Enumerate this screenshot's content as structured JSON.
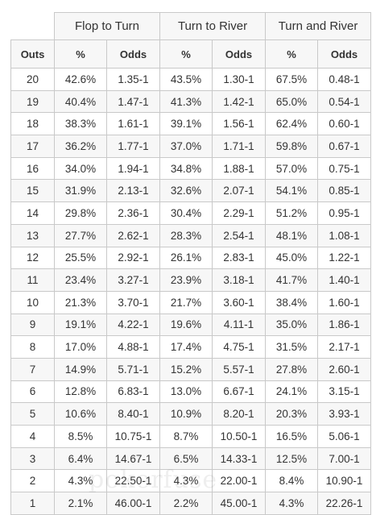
{
  "table": {
    "groups": [
      "Flop to Turn",
      "Turn to River",
      "Turn and River"
    ],
    "subheaders": [
      "Outs",
      "%",
      "Odds",
      "%",
      "Odds",
      "%",
      "Odds"
    ],
    "rows": [
      [
        "20",
        "42.6%",
        "1.35-1",
        "43.5%",
        "1.30-1",
        "67.5%",
        "0.48-1"
      ],
      [
        "19",
        "40.4%",
        "1.47-1",
        "41.3%",
        "1.42-1",
        "65.0%",
        "0.54-1"
      ],
      [
        "18",
        "38.3%",
        "1.61-1",
        "39.1%",
        "1.56-1",
        "62.4%",
        "0.60-1"
      ],
      [
        "17",
        "36.2%",
        "1.77-1",
        "37.0%",
        "1.71-1",
        "59.8%",
        "0.67-1"
      ],
      [
        "16",
        "34.0%",
        "1.94-1",
        "34.8%",
        "1.88-1",
        "57.0%",
        "0.75-1"
      ],
      [
        "15",
        "31.9%",
        "2.13-1",
        "32.6%",
        "2.07-1",
        "54.1%",
        "0.85-1"
      ],
      [
        "14",
        "29.8%",
        "2.36-1",
        "30.4%",
        "2.29-1",
        "51.2%",
        "0.95-1"
      ],
      [
        "13",
        "27.7%",
        "2.62-1",
        "28.3%",
        "2.54-1",
        "48.1%",
        "1.08-1"
      ],
      [
        "12",
        "25.5%",
        "2.92-1",
        "26.1%",
        "2.83-1",
        "45.0%",
        "1.22-1"
      ],
      [
        "11",
        "23.4%",
        "3.27-1",
        "23.9%",
        "3.18-1",
        "41.7%",
        "1.40-1"
      ],
      [
        "10",
        "21.3%",
        "3.70-1",
        "21.7%",
        "3.60-1",
        "38.4%",
        "1.60-1"
      ],
      [
        "9",
        "19.1%",
        "4.22-1",
        "19.6%",
        "4.11-1",
        "35.0%",
        "1.86-1"
      ],
      [
        "8",
        "17.0%",
        "4.88-1",
        "17.4%",
        "4.75-1",
        "31.5%",
        "2.17-1"
      ],
      [
        "7",
        "14.9%",
        "5.71-1",
        "15.2%",
        "5.57-1",
        "27.8%",
        "2.60-1"
      ],
      [
        "6",
        "12.8%",
        "6.83-1",
        "13.0%",
        "6.67-1",
        "24.1%",
        "3.15-1"
      ],
      [
        "5",
        "10.6%",
        "8.40-1",
        "10.9%",
        "8.20-1",
        "20.3%",
        "3.93-1"
      ],
      [
        "4",
        "8.5%",
        "10.75-1",
        "8.7%",
        "10.50-1",
        "16.5%",
        "5.06-1"
      ],
      [
        "3",
        "6.4%",
        "14.67-1",
        "6.5%",
        "14.33-1",
        "12.5%",
        "7.00-1"
      ],
      [
        "2",
        "4.3%",
        "22.50-1",
        "4.3%",
        "22.00-1",
        "8.4%",
        "10.90-1"
      ],
      [
        "1",
        "2.1%",
        "46.00-1",
        "2.2%",
        "45.00-1",
        "4.3%",
        "22.26-1"
      ]
    ]
  },
  "watermark": "pokerfuse"
}
